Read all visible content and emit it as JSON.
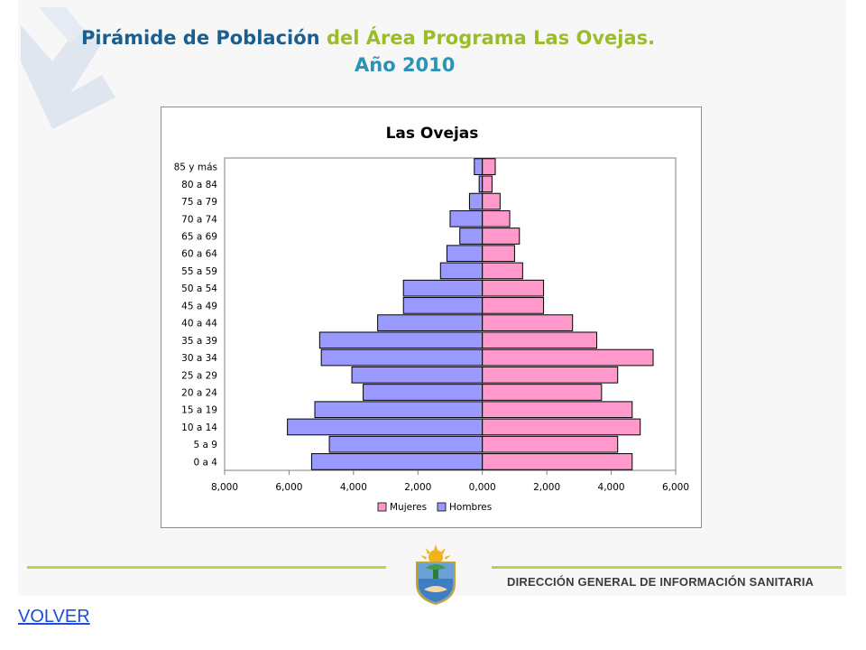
{
  "header": {
    "title_part1": "Pirámide de Población",
    "title_part2": "del Área Programa Las Ovejas.",
    "title_line2": "Año 2010"
  },
  "footer": {
    "org_name": "DIRECCIÓN GENERAL DE INFORMACIÓN SANITARIA",
    "back_link": "VOLVER"
  },
  "colors": {
    "mujeres": "#ff99cc",
    "hombres": "#9999ff",
    "accent_green": "#bcd14e",
    "title_blue": "#1b5f8f"
  },
  "chart_data": {
    "type": "bar",
    "orientation": "horizontal",
    "title": "Las Ovejas",
    "categories": [
      "85 y más",
      "80 a 84",
      "75 a 79",
      "70 a 74",
      "65 a 69",
      "60 a 64",
      "55 a 59",
      "50 a 54",
      "45 a 49",
      "40 a 44",
      "35 a 39",
      "30 a 34",
      "25 a 29",
      "20 a 24",
      "15 a 19",
      "10 a 14",
      "5 a 9",
      "0 a 4"
    ],
    "series": [
      {
        "name": "Mujeres",
        "values": [
          400,
          300,
          550,
          850,
          1150,
          1000,
          1250,
          1900,
          1900,
          2800,
          3550,
          5300,
          4200,
          3700,
          4650,
          4900,
          4200,
          4650
        ]
      },
      {
        "name": "Hombres",
        "values": [
          250,
          100,
          400,
          1000,
          700,
          1100,
          1300,
          2450,
          2450,
          3250,
          5050,
          5000,
          4050,
          3700,
          5200,
          6050,
          4750,
          5300
        ]
      }
    ],
    "xlim": [
      -8000,
      6000
    ],
    "xticks": [
      "8,000",
      "6,000",
      "4,000",
      "2,000",
      "0,000",
      "2,000",
      "4,000",
      "6,000"
    ],
    "legend_position": "bottom",
    "grid": false
  }
}
